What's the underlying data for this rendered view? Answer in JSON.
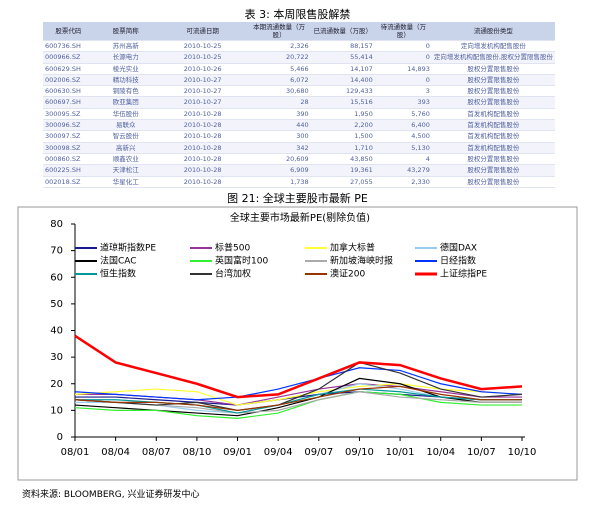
{
  "table": {
    "title": "表 3: 本周限售股解禁",
    "headers": [
      "股票代码",
      "股票简称",
      "可流通日期",
      "本期流通数量（万股）",
      "已流通数量（万股）",
      "待流通数量（万股）",
      "流通股份类型"
    ],
    "rows": [
      [
        "600736.SH",
        "苏州高新",
        "2010-10-25",
        "2,326",
        "88,157",
        "0",
        "定向增发机构配售股份"
      ],
      [
        "000966.SZ",
        "长源电力",
        "2010-10-25",
        "20,722",
        "55,414",
        "0",
        "定向增发机构配售股份,股权分置限售股份"
      ],
      [
        "600629.SH",
        "棱光实业",
        "2010-10-26",
        "5,466",
        "14,107",
        "14,893",
        "股权分置限售股份"
      ],
      [
        "002006.SZ",
        "精功科技",
        "2010-10-27",
        "6,072",
        "14,400",
        "0",
        "股权分置限售股份"
      ],
      [
        "600630.SH",
        "铜陵有色",
        "2010-10-27",
        "30,680",
        "129,433",
        "3",
        "股权分置限售股份"
      ],
      [
        "600697.SH",
        "欧亚集团",
        "2010-10-27",
        "28",
        "15,516",
        "393",
        "股权分置限售股份"
      ],
      [
        "300095.SZ",
        "华伍股份",
        "2010-10-28",
        "390",
        "1,950",
        "5,760",
        "首发机构配售股份"
      ],
      [
        "300096.SZ",
        "易联众",
        "2010-10-28",
        "440",
        "2,200",
        "6,400",
        "首发机构配售股份"
      ],
      [
        "300097.SZ",
        "智云股份",
        "2010-10-28",
        "300",
        "1,500",
        "4,500",
        "首发机构配售股份"
      ],
      [
        "300098.SZ",
        "高新兴",
        "2010-10-28",
        "342",
        "1,710",
        "5,130",
        "首发机构配售股份"
      ],
      [
        "000860.SZ",
        "顺鑫农业",
        "2010-10-28",
        "20,609",
        "43,850",
        "4",
        "股权分置限售股份"
      ],
      [
        "600225.SH",
        "天津松江",
        "2010-10-28",
        "6,909",
        "19,361",
        "43,279",
        "股权分置限售股份"
      ],
      [
        "002018.SZ",
        "华星化工",
        "2010-10-28",
        "1,738",
        "27,055",
        "2,330",
        "股权分置限售股份"
      ]
    ]
  },
  "figure_caption": "图 21: 全球主要股市最新 PE",
  "chart_data": {
    "type": "line",
    "title": "全球主要市场最新PE(剔除负值)",
    "categories": [
      "08/01",
      "08/04",
      "08/07",
      "08/10",
      "09/01",
      "09/04",
      "09/07",
      "09/10",
      "10/01",
      "10/04",
      "10/07",
      "10/10"
    ],
    "ylim": [
      0,
      80
    ],
    "yticks": [
      0,
      10,
      20,
      30,
      40,
      50,
      60,
      70,
      80
    ],
    "series": [
      {
        "name": "道琼斯指数PE",
        "color": "#1a1a8c",
        "values": [
          15,
          15,
          14,
          13,
          12,
          14,
          16,
          17,
          16,
          15,
          14,
          14
        ]
      },
      {
        "name": "标普500",
        "color": "#993399",
        "values": [
          16,
          16,
          15,
          14,
          12,
          15,
          18,
          20,
          19,
          17,
          15,
          15
        ]
      },
      {
        "name": "加拿大标普",
        "color": "#ffff33",
        "values": [
          16,
          17,
          18,
          17,
          12,
          14,
          17,
          19,
          20,
          18,
          17,
          16
        ]
      },
      {
        "name": "德国DAX",
        "color": "#99ccee",
        "values": [
          13,
          13,
          12,
          10,
          9,
          12,
          16,
          20,
          18,
          15,
          14,
          14
        ]
      },
      {
        "name": "法国CAC",
        "color": "#000000",
        "values": [
          12,
          11,
          10,
          9,
          8,
          11,
          15,
          22,
          20,
          15,
          13,
          13
        ]
      },
      {
        "name": "英国富时100",
        "color": "#33ee33",
        "values": [
          11,
          10,
          10,
          8,
          7,
          9,
          14,
          17,
          16,
          13,
          12,
          12
        ]
      },
      {
        "name": "新加坡海峡时报",
        "color": "#aaaaaa",
        "values": [
          14,
          13,
          12,
          11,
          9,
          10,
          14,
          17,
          15,
          14,
          13,
          13
        ]
      },
      {
        "name": "日经指数",
        "color": "#0033ff",
        "values": [
          17,
          16,
          15,
          14,
          15,
          18,
          22,
          26,
          25,
          20,
          17,
          16
        ]
      },
      {
        "name": "恒生指数",
        "color": "#009999",
        "values": [
          14,
          14,
          13,
          12,
          9,
          12,
          16,
          18,
          17,
          15,
          14,
          14
        ]
      },
      {
        "name": "台湾加权",
        "color": "#333333",
        "values": [
          14,
          13,
          12,
          13,
          10,
          12,
          18,
          28,
          24,
          18,
          15,
          16
        ]
      },
      {
        "name": "澳证200",
        "color": "#993300",
        "values": [
          14,
          13,
          13,
          12,
          10,
          12,
          15,
          18,
          19,
          16,
          14,
          14
        ]
      },
      {
        "name": "上证综指PE",
        "color": "#ff0000",
        "values": [
          38,
          28,
          24,
          20,
          15,
          16,
          22,
          28,
          27,
          22,
          18,
          19
        ]
      }
    ]
  },
  "source": "资料来源: BLOOMBERG, 兴业证券研发中心"
}
